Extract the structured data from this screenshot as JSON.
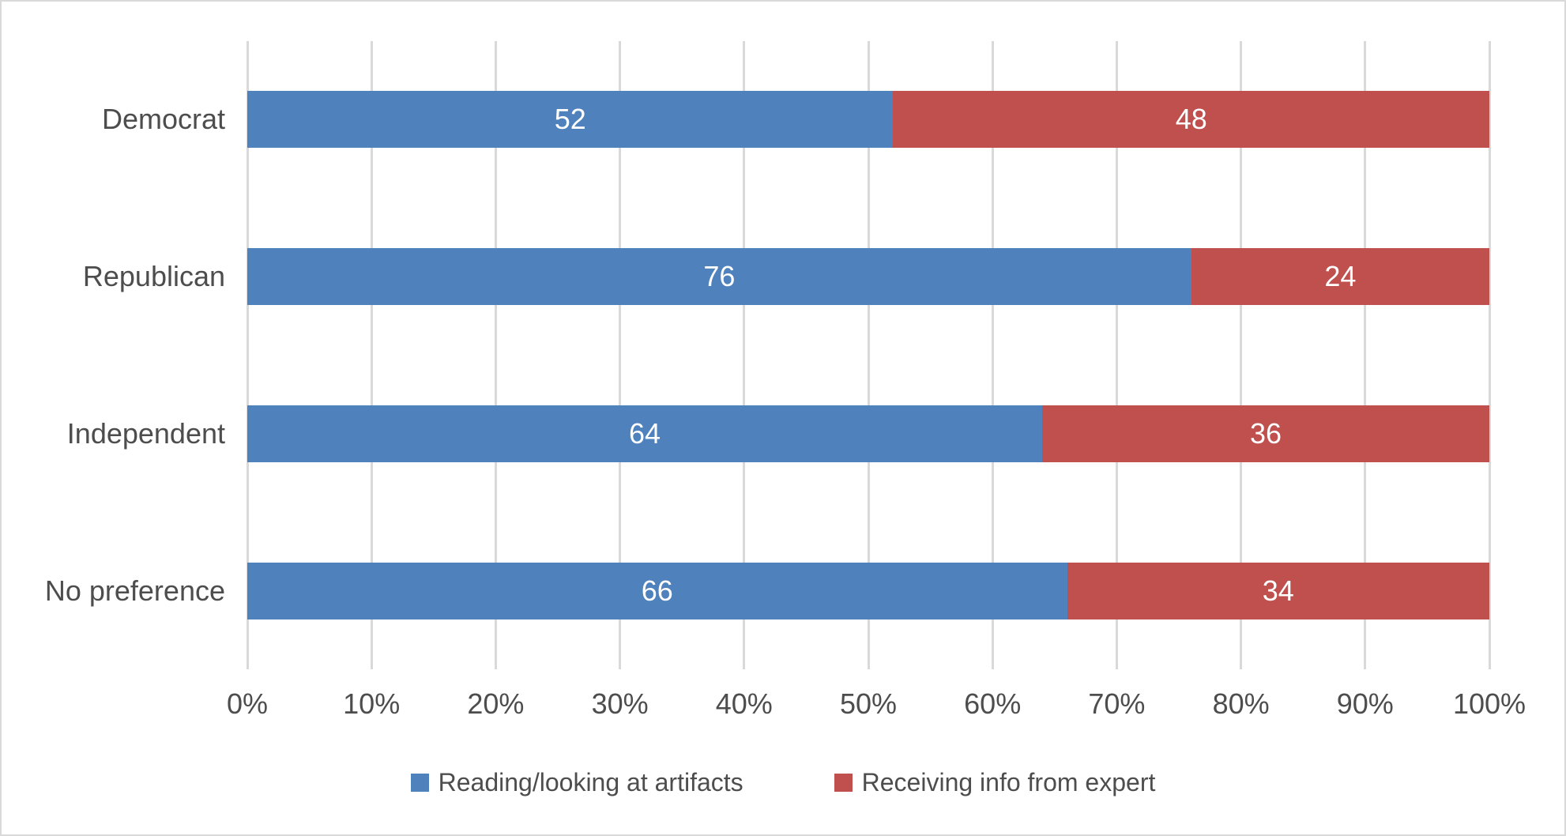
{
  "chart_data": {
    "type": "bar",
    "orientation": "horizontal",
    "stacked": true,
    "title": "",
    "categories": [
      "Democrat",
      "Republican",
      "Independent",
      "No preference"
    ],
    "series": [
      {
        "name": "Reading/looking at artifacts",
        "color": "#4F81BD",
        "values": [
          52,
          76,
          64,
          66
        ]
      },
      {
        "name": "Receiving info from expert",
        "color": "#BF504D",
        "values": [
          48,
          24,
          36,
          34
        ]
      }
    ],
    "x_ticks": [
      "0%",
      "10%",
      "20%",
      "30%",
      "40%",
      "50%",
      "60%",
      "70%",
      "80%",
      "90%",
      "100%"
    ],
    "xlim": [
      0,
      100
    ],
    "grid": "vertical",
    "legend_position": "bottom",
    "value_labels": "inside-center"
  },
  "style": {
    "background": "#FFFFFF",
    "frame_border": "#D9D9D9",
    "gridline_color": "#D9D9D9",
    "axis_text_color": "#4D4D4D",
    "value_label_color": "#FFFFFF"
  }
}
